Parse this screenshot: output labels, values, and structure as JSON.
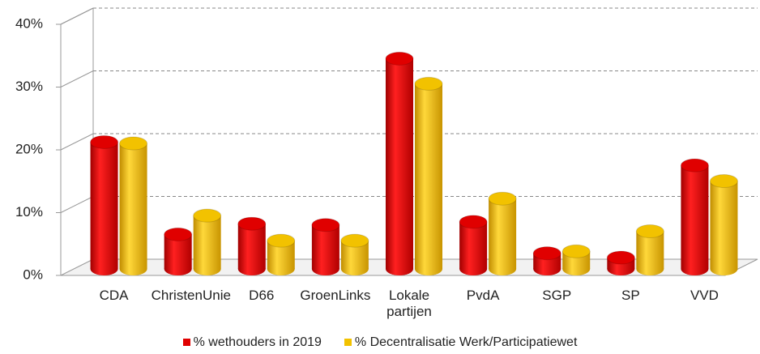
{
  "chart_data": {
    "type": "bar3d",
    "categories": [
      "CDA",
      "ChristenUnie",
      "D66",
      "GroenLinks",
      "Lokale partijen",
      "PvdA",
      "SGP",
      "SP",
      "VVD"
    ],
    "series": [
      {
        "name": "% wethouders in 2019",
        "color": "#e00000",
        "values": [
          20.2,
          5.5,
          7.2,
          7,
          33.5,
          7.5,
          2.5,
          1.8,
          16.5
        ]
      },
      {
        "name": "% Decentralisatie Werk/Participatiewet",
        "color": "#f2c200",
        "values": [
          20,
          8.5,
          4.5,
          4.5,
          29.5,
          11.2,
          2.8,
          6,
          14
        ]
      }
    ],
    "ylim": [
      0,
      40
    ],
    "yticks": [
      {
        "value": 0,
        "label": "0%"
      },
      {
        "value": 10,
        "label": "10%"
      },
      {
        "value": 20,
        "label": "20%"
      },
      {
        "value": 30,
        "label": "30%"
      },
      {
        "value": 40,
        "label": "40%"
      }
    ],
    "grid": true
  }
}
